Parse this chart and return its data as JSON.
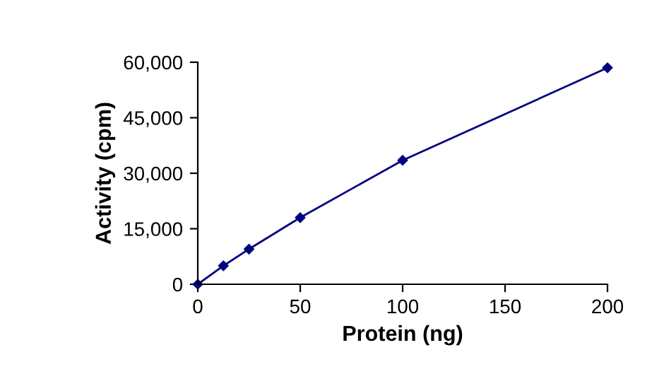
{
  "chart_data": {
    "type": "line",
    "xlabel": "Protein (ng)",
    "ylabel": "Activity (cpm)",
    "x": [
      0,
      12.5,
      25,
      50,
      100,
      200
    ],
    "series": [
      {
        "color": "#000080",
        "values": [
          0,
          5000,
          9500,
          18000,
          33500,
          58500
        ]
      }
    ],
    "xlim": [
      0,
      200
    ],
    "xticks": [
      0,
      50,
      100,
      150,
      200
    ],
    "ylim": [
      0,
      60000
    ],
    "yticks": [
      {
        "value": 0,
        "label": "0"
      },
      {
        "value": 15000,
        "label": "15,000"
      },
      {
        "value": 30000,
        "label": "30,000"
      },
      {
        "value": 45000,
        "label": "45,000"
      },
      {
        "value": 60000,
        "label": "60,000"
      }
    ],
    "grid": false,
    "marker": "diamond",
    "line_style": "solid",
    "legend": false
  }
}
